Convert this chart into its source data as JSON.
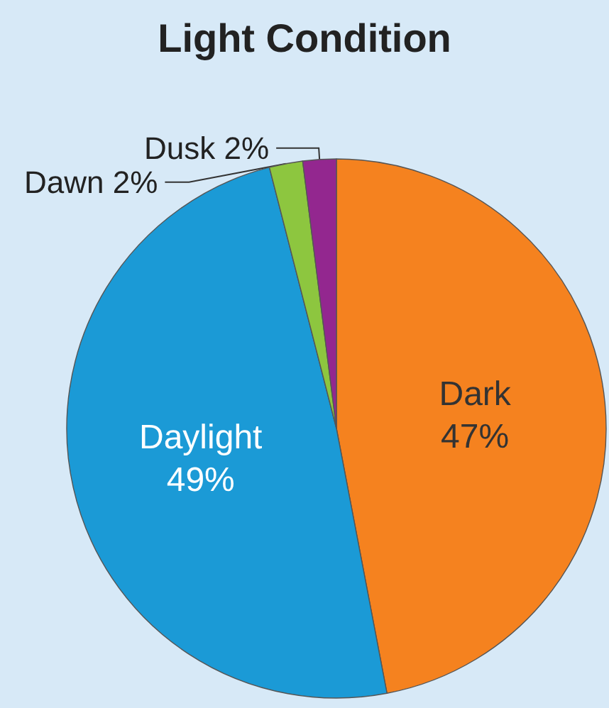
{
  "chart_data": {
    "type": "pie",
    "title": "Light Condition",
    "categories": [
      "Dark",
      "Daylight",
      "Dawn",
      "Dusk"
    ],
    "values": [
      47,
      49,
      2,
      2
    ],
    "value_labels": [
      "47%",
      "49%",
      "2%",
      "2%"
    ],
    "colors": [
      "#f5821f",
      "#1b9ad6",
      "#8dc63f",
      "#93278f"
    ]
  }
}
